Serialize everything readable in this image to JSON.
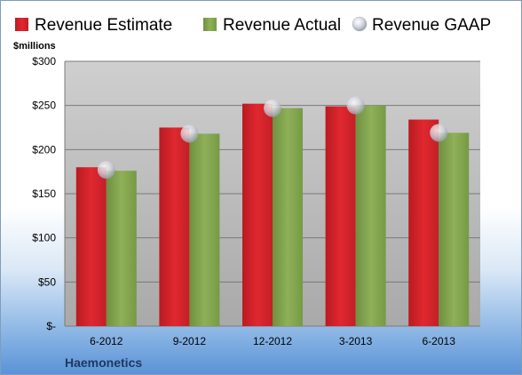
{
  "company": "Haemonetics",
  "chart_data": {
    "type": "bar",
    "ylabel": "$millions",
    "ylim": [
      0,
      300
    ],
    "yticks": [
      0,
      50,
      100,
      150,
      200,
      250,
      300
    ],
    "ytick_labels": [
      "$-",
      "$50",
      "$100",
      "$150",
      "$200",
      "$250",
      "$300"
    ],
    "categories": [
      "6-2012",
      "9-2012",
      "12-2012",
      "3-2013",
      "6-2013"
    ],
    "legend_position": "top",
    "grid": true,
    "series": [
      {
        "name": "Revenue Estimate",
        "type": "bar",
        "color": "#cc2229",
        "values": [
          180,
          225,
          252,
          249,
          234
        ]
      },
      {
        "name": "Revenue Actual",
        "type": "bar",
        "color": "#7fa04a",
        "values": [
          176,
          218,
          247,
          250,
          219
        ]
      },
      {
        "name": "Revenue GAAP",
        "type": "scatter",
        "color": "#c9ced8",
        "values": [
          177,
          218,
          247,
          250,
          219
        ]
      }
    ]
  }
}
